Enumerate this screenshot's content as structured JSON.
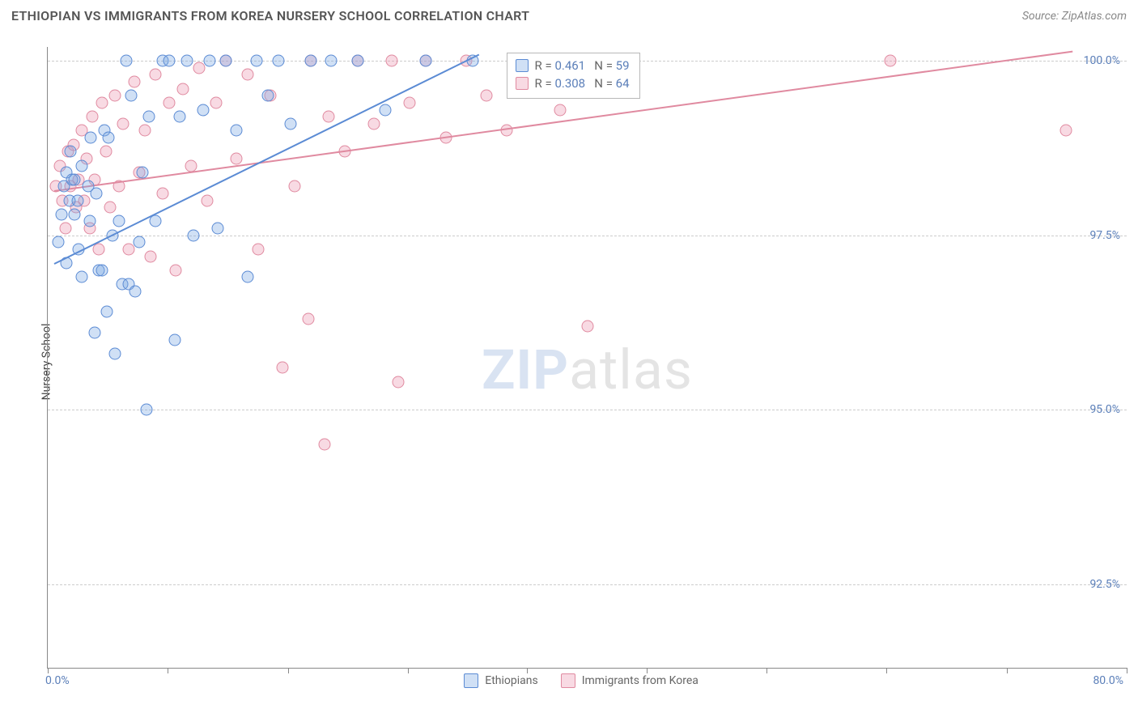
{
  "title": "ETHIOPIAN VS IMMIGRANTS FROM KOREA NURSERY SCHOOL CORRELATION CHART",
  "source": "Source: ZipAtlas.com",
  "watermark": {
    "bold": "ZIP",
    "light": "atlas"
  },
  "chart": {
    "type": "scatter",
    "background_color": "#ffffff",
    "grid_color": "#cccccc",
    "axis_color": "#888888",
    "tick_label_color": "#5b7fb9",
    "yaxis_label": "Nursery School",
    "xlim": [
      0,
      80
    ],
    "ylim": [
      91.3,
      100.2
    ],
    "yticks": [
      92.5,
      95.0,
      97.5,
      100.0
    ],
    "ytick_labels": [
      "92.5%",
      "95.0%",
      "97.5%",
      "100.0%"
    ],
    "xticks": [
      0,
      8.9,
      17.8,
      26.7,
      35.5,
      44.4,
      53.3,
      62.2,
      71.1,
      80.0
    ],
    "xmin_label": "0.0%",
    "xmax_label": "80.0%",
    "marker_size": 15,
    "marker_opacity": 0.35,
    "line_width": 2,
    "series": {
      "ethiopians": {
        "label": "Ethiopians",
        "color_stroke": "#5b8bd4",
        "color_fill": "rgba(120,165,225,0.35)",
        "points": [
          [
            0.8,
            97.4
          ],
          [
            1.0,
            97.8
          ],
          [
            1.2,
            98.2
          ],
          [
            1.4,
            98.4
          ],
          [
            1.4,
            97.1
          ],
          [
            1.6,
            98.0
          ],
          [
            1.7,
            98.7
          ],
          [
            1.8,
            98.3
          ],
          [
            2.0,
            98.3
          ],
          [
            2.0,
            97.8
          ],
          [
            2.2,
            98.0
          ],
          [
            2.3,
            97.3
          ],
          [
            2.5,
            98.5
          ],
          [
            2.5,
            96.9
          ],
          [
            3.0,
            98.2
          ],
          [
            3.1,
            97.7
          ],
          [
            3.2,
            98.9
          ],
          [
            3.5,
            96.1
          ],
          [
            3.6,
            98.1
          ],
          [
            3.8,
            97.0
          ],
          [
            4.0,
            97.0
          ],
          [
            4.2,
            99.0
          ],
          [
            4.4,
            96.4
          ],
          [
            4.5,
            98.9
          ],
          [
            4.8,
            97.5
          ],
          [
            5.0,
            95.8
          ],
          [
            5.3,
            97.7
          ],
          [
            5.5,
            96.8
          ],
          [
            5.8,
            100.0
          ],
          [
            6.0,
            96.8
          ],
          [
            6.2,
            99.5
          ],
          [
            6.5,
            96.7
          ],
          [
            6.8,
            97.4
          ],
          [
            7.0,
            98.4
          ],
          [
            7.3,
            95.0
          ],
          [
            7.5,
            99.2
          ],
          [
            8.0,
            97.7
          ],
          [
            8.5,
            100.0
          ],
          [
            9.0,
            100.0
          ],
          [
            9.4,
            96.0
          ],
          [
            9.8,
            99.2
          ],
          [
            10.3,
            100.0
          ],
          [
            10.8,
            97.5
          ],
          [
            11.5,
            99.3
          ],
          [
            12.0,
            100.0
          ],
          [
            12.6,
            97.6
          ],
          [
            13.2,
            100.0
          ],
          [
            14.0,
            99.0
          ],
          [
            14.8,
            96.9
          ],
          [
            15.5,
            100.0
          ],
          [
            16.3,
            99.5
          ],
          [
            17.1,
            100.0
          ],
          [
            18.0,
            99.1
          ],
          [
            19.5,
            100.0
          ],
          [
            21.0,
            100.0
          ],
          [
            23.0,
            100.0
          ],
          [
            25.0,
            99.3
          ],
          [
            28.0,
            100.0
          ],
          [
            31.5,
            100.0
          ]
        ],
        "trend": {
          "x1": 0.5,
          "y1": 97.1,
          "x2": 32.0,
          "y2": 100.1
        },
        "stats": {
          "R": "0.461",
          "N": "59"
        }
      },
      "korea": {
        "label": "Immigrants from Korea",
        "color_stroke": "#e08aa0",
        "color_fill": "rgba(235,150,175,0.35)",
        "points": [
          [
            0.6,
            98.2
          ],
          [
            0.9,
            98.5
          ],
          [
            1.1,
            98.0
          ],
          [
            1.3,
            97.6
          ],
          [
            1.5,
            98.7
          ],
          [
            1.7,
            98.2
          ],
          [
            1.9,
            98.8
          ],
          [
            2.1,
            97.9
          ],
          [
            2.3,
            98.3
          ],
          [
            2.5,
            99.0
          ],
          [
            2.7,
            98.0
          ],
          [
            2.9,
            98.6
          ],
          [
            3.1,
            97.6
          ],
          [
            3.3,
            99.2
          ],
          [
            3.5,
            98.3
          ],
          [
            3.8,
            97.3
          ],
          [
            4.0,
            99.4
          ],
          [
            4.3,
            98.7
          ],
          [
            4.6,
            97.9
          ],
          [
            5.0,
            99.5
          ],
          [
            5.3,
            98.2
          ],
          [
            5.6,
            99.1
          ],
          [
            6.0,
            97.3
          ],
          [
            6.4,
            99.7
          ],
          [
            6.8,
            98.4
          ],
          [
            7.2,
            99.0
          ],
          [
            7.6,
            97.2
          ],
          [
            8.0,
            99.8
          ],
          [
            8.5,
            98.1
          ],
          [
            9.0,
            99.4
          ],
          [
            9.5,
            97.0
          ],
          [
            10.0,
            99.6
          ],
          [
            10.6,
            98.5
          ],
          [
            11.2,
            99.9
          ],
          [
            11.8,
            98.0
          ],
          [
            12.5,
            99.4
          ],
          [
            13.2,
            100.0
          ],
          [
            14.0,
            98.6
          ],
          [
            14.8,
            99.8
          ],
          [
            15.6,
            97.3
          ],
          [
            16.5,
            99.5
          ],
          [
            17.4,
            95.6
          ],
          [
            18.3,
            98.2
          ],
          [
            19.3,
            96.3
          ],
          [
            19.5,
            100.0
          ],
          [
            20.5,
            94.5
          ],
          [
            20.8,
            99.2
          ],
          [
            22.0,
            98.7
          ],
          [
            23.0,
            100.0
          ],
          [
            24.2,
            99.1
          ],
          [
            25.5,
            100.0
          ],
          [
            26.0,
            95.4
          ],
          [
            26.8,
            99.4
          ],
          [
            28.0,
            100.0
          ],
          [
            29.5,
            98.9
          ],
          [
            31.0,
            100.0
          ],
          [
            32.5,
            99.5
          ],
          [
            34.0,
            99.0
          ],
          [
            36.0,
            100.0
          ],
          [
            38.0,
            99.3
          ],
          [
            40.0,
            96.2
          ],
          [
            42.0,
            99.7
          ],
          [
            62.5,
            100.0
          ],
          [
            75.5,
            99.0
          ]
        ],
        "trend": {
          "x1": 0.5,
          "y1": 98.15,
          "x2": 76.0,
          "y2": 100.15
        },
        "stats": {
          "R": "0.308",
          "N": "64"
        }
      }
    }
  },
  "legend_bottom": [
    "ethiopians",
    "korea"
  ]
}
